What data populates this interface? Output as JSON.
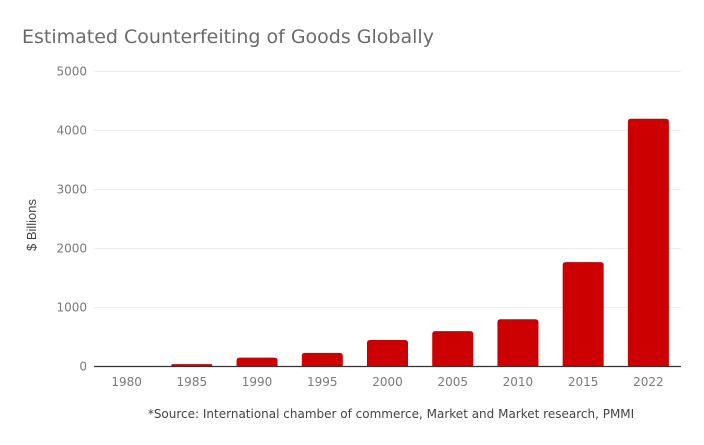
{
  "chart_data": {
    "type": "bar",
    "title": "Estimated Counterfeiting of Goods Globally",
    "xlabel": "",
    "ylabel": "$ Billions",
    "categories": [
      "1980",
      "1985",
      "1990",
      "1995",
      "2000",
      "2005",
      "2010",
      "2015",
      "2022"
    ],
    "values": [
      0,
      40,
      150,
      230,
      450,
      600,
      800,
      1770,
      4200
    ],
    "ylim": [
      0,
      5000
    ],
    "yticks": [
      "0",
      "1000",
      "2000",
      "3000",
      "4000",
      "5000"
    ],
    "grid": true,
    "legend": "none",
    "bar_color": "#cc0000",
    "annotation": "*Source: International chamber of commerce, Market and Market research, PMMI"
  }
}
